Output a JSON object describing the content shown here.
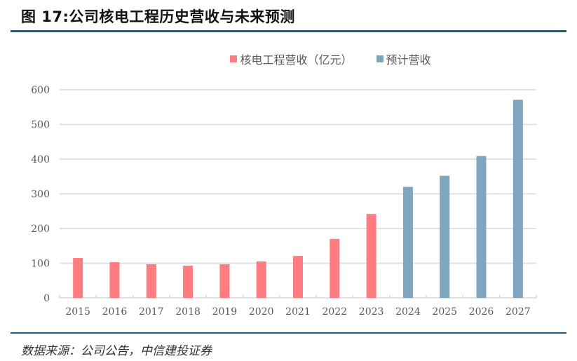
{
  "figure": {
    "title": "图 17:公司核电工程历史营收与未来预测",
    "source": "数据来源：公司公告，中信建投证券"
  },
  "colors": {
    "historical": "#ff7c80",
    "forecast": "#7fa5bf",
    "rule": "#1d5a85",
    "grid": "#d9d9d9",
    "text": "#595959"
  },
  "chart_data": {
    "type": "bar",
    "title": "图 17:公司核电工程历史营收与未来预测",
    "xlabel": "",
    "ylabel": "",
    "ylim": [
      0,
      600
    ],
    "yticks": [
      0,
      100,
      200,
      300,
      400,
      500,
      600
    ],
    "grid": true,
    "legend_position": "top-center",
    "categories": [
      "2015",
      "2016",
      "2017",
      "2018",
      "2019",
      "2020",
      "2021",
      "2022",
      "2023",
      "2024",
      "2025",
      "2026",
      "2027"
    ],
    "series": [
      {
        "name": "核电工程营收（亿元）",
        "color": "#ff7c80",
        "values": [
          115,
          103,
          97,
          93,
          97,
          105,
          121,
          170,
          242,
          null,
          null,
          null,
          null
        ]
      },
      {
        "name": "预计营收",
        "color": "#7fa5bf",
        "values": [
          null,
          null,
          null,
          null,
          null,
          null,
          null,
          null,
          null,
          320,
          352,
          409,
          571
        ]
      }
    ]
  }
}
